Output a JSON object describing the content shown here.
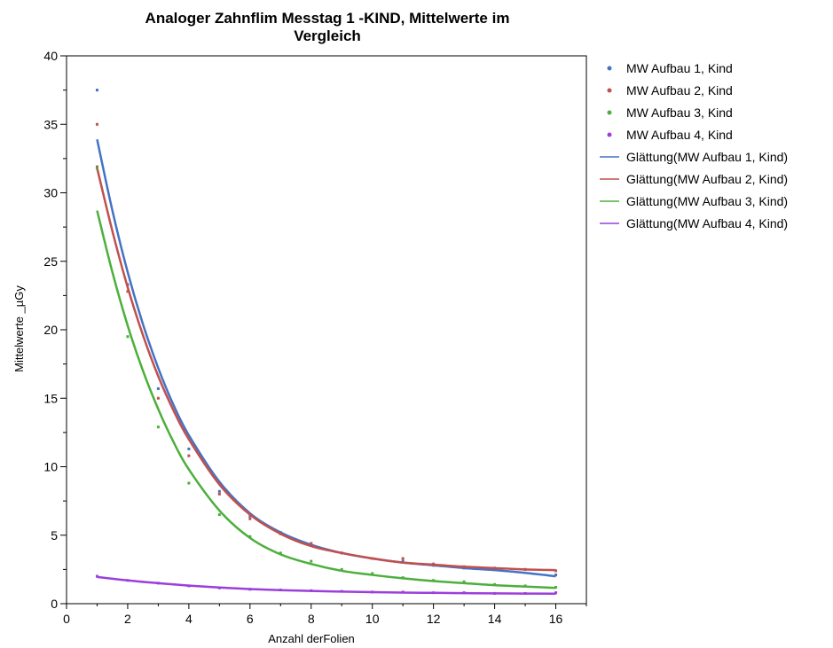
{
  "chart_data": {
    "type": "scatter",
    "title_lines": [
      "Analoger Zahnflim Messtag 1 -KIND, Mittelwerte im",
      "Vergleich"
    ],
    "xlabel": "Anzahl derFolien",
    "ylabel": "Mittelwerte _µGy",
    "xlim": [
      0,
      17
    ],
    "ylim": [
      0,
      40
    ],
    "x_ticks": [
      0,
      2,
      4,
      6,
      8,
      10,
      12,
      14,
      16
    ],
    "y_ticks": [
      0,
      5,
      10,
      15,
      20,
      25,
      30,
      35,
      40
    ],
    "grid": false,
    "legend_position": "top-right",
    "series": [
      {
        "name": "MW Aufbau 1, Kind",
        "color": "#4472c4",
        "points": [
          [
            1,
            37.5
          ],
          [
            2,
            23.3
          ],
          [
            3,
            15.7
          ],
          [
            4,
            11.3
          ],
          [
            5,
            8.2
          ],
          [
            6,
            6.4
          ],
          [
            7,
            5.2
          ],
          [
            8,
            4.3
          ],
          [
            9,
            3.7
          ],
          [
            10,
            3.3
          ],
          [
            11,
            3.1
          ],
          [
            12,
            2.8
          ],
          [
            13,
            2.6
          ],
          [
            14,
            2.5
          ],
          [
            15,
            2.5
          ],
          [
            16,
            2.1
          ]
        ],
        "smooth_name": "Glättung(MW Aufbau 1, Kind)",
        "smooth": [
          [
            1,
            33.9
          ],
          [
            1.5,
            28.7
          ],
          [
            2,
            24.2
          ],
          [
            2.5,
            20.4
          ],
          [
            3,
            17.2
          ],
          [
            3.5,
            14.5
          ],
          [
            4,
            12.3
          ],
          [
            5,
            8.9
          ],
          [
            6,
            6.6
          ],
          [
            7,
            5.2
          ],
          [
            8,
            4.3
          ],
          [
            9,
            3.7
          ],
          [
            10,
            3.3
          ],
          [
            11,
            3.0
          ],
          [
            12,
            2.8
          ],
          [
            13,
            2.6
          ],
          [
            14,
            2.45
          ],
          [
            15,
            2.25
          ],
          [
            16,
            2.0
          ]
        ]
      },
      {
        "name": "MW Aufbau 2, Kind",
        "color": "#c0504d",
        "points": [
          [
            1,
            35.0
          ],
          [
            1,
            31.9
          ],
          [
            2,
            22.8
          ],
          [
            3,
            15.0
          ],
          [
            4,
            10.8
          ],
          [
            5,
            8.0
          ],
          [
            6,
            6.2
          ],
          [
            7,
            5.1
          ],
          [
            8,
            4.4
          ],
          [
            9,
            3.7
          ],
          [
            10,
            3.3
          ],
          [
            11,
            3.3
          ],
          [
            12,
            2.9
          ],
          [
            13,
            2.7
          ],
          [
            14,
            2.6
          ],
          [
            15,
            2.5
          ],
          [
            16,
            2.4
          ]
        ],
        "smooth_name": "Glättung(MW Aufbau 2, Kind)",
        "smooth": [
          [
            1,
            31.8
          ],
          [
            1.5,
            27.2
          ],
          [
            2,
            23.1
          ],
          [
            2.5,
            19.6
          ],
          [
            3,
            16.6
          ],
          [
            3.5,
            14.1
          ],
          [
            4,
            12.0
          ],
          [
            5,
            8.7
          ],
          [
            6,
            6.5
          ],
          [
            7,
            5.1
          ],
          [
            8,
            4.2
          ],
          [
            9,
            3.7
          ],
          [
            10,
            3.3
          ],
          [
            11,
            3.0
          ],
          [
            12,
            2.85
          ],
          [
            13,
            2.7
          ],
          [
            14,
            2.6
          ],
          [
            15,
            2.5
          ],
          [
            16,
            2.45
          ]
        ]
      },
      {
        "name": "MW Aufbau 3, Kind",
        "color": "#4caf3c",
        "points": [
          [
            1,
            31.8
          ],
          [
            2,
            19.5
          ],
          [
            3,
            12.9
          ],
          [
            4,
            8.8
          ],
          [
            5,
            6.5
          ],
          [
            6,
            4.9
          ],
          [
            7,
            3.7
          ],
          [
            8,
            3.1
          ],
          [
            9,
            2.5
          ],
          [
            10,
            2.2
          ],
          [
            11,
            1.9
          ],
          [
            12,
            1.7
          ],
          [
            13,
            1.6
          ],
          [
            14,
            1.4
          ],
          [
            15,
            1.3
          ],
          [
            16,
            1.2
          ]
        ],
        "smooth_name": "Glättung(MW Aufbau 3, Kind)",
        "smooth": [
          [
            1,
            28.7
          ],
          [
            1.5,
            24.2
          ],
          [
            2,
            20.3
          ],
          [
            2.5,
            17.0
          ],
          [
            3,
            14.2
          ],
          [
            3.5,
            11.8
          ],
          [
            4,
            9.8
          ],
          [
            5,
            6.8
          ],
          [
            6,
            4.8
          ],
          [
            7,
            3.6
          ],
          [
            8,
            2.9
          ],
          [
            9,
            2.4
          ],
          [
            10,
            2.1
          ],
          [
            11,
            1.85
          ],
          [
            12,
            1.65
          ],
          [
            13,
            1.5
          ],
          [
            14,
            1.35
          ],
          [
            15,
            1.25
          ],
          [
            16,
            1.15
          ]
        ]
      },
      {
        "name": "MW Aufbau 4, Kind",
        "color": "#9b3fdb",
        "points": [
          [
            1,
            2.0
          ],
          [
            2,
            1.7
          ],
          [
            3,
            1.5
          ],
          [
            4,
            1.3
          ],
          [
            5,
            1.15
          ],
          [
            6,
            1.05
          ],
          [
            7,
            1.0
          ],
          [
            8,
            0.95
          ],
          [
            9,
            0.9
          ],
          [
            10,
            0.85
          ],
          [
            11,
            0.85
          ],
          [
            12,
            0.8
          ],
          [
            13,
            0.8
          ],
          [
            14,
            0.75
          ],
          [
            15,
            0.75
          ],
          [
            16,
            0.8
          ]
        ],
        "smooth_name": "Glättung(MW Aufbau 4, Kind)",
        "smooth": [
          [
            1,
            1.95
          ],
          [
            2,
            1.7
          ],
          [
            3,
            1.5
          ],
          [
            4,
            1.32
          ],
          [
            5,
            1.18
          ],
          [
            6,
            1.07
          ],
          [
            7,
            0.99
          ],
          [
            8,
            0.93
          ],
          [
            9,
            0.88
          ],
          [
            10,
            0.84
          ],
          [
            11,
            0.81
          ],
          [
            12,
            0.79
          ],
          [
            13,
            0.77
          ],
          [
            14,
            0.75
          ],
          [
            15,
            0.74
          ],
          [
            16,
            0.73
          ]
        ]
      }
    ]
  }
}
